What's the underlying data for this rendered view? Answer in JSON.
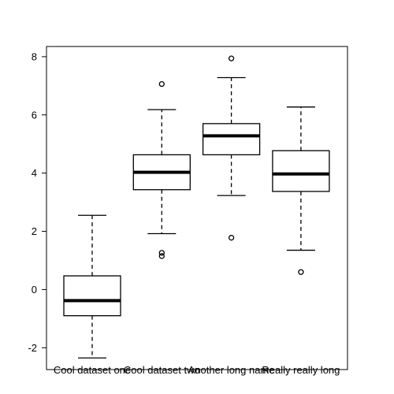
{
  "chart_data": {
    "type": "box",
    "title": "",
    "xlabel": "",
    "ylabel": "",
    "ylim": [
      -2.75,
      8.35
    ],
    "yticks": [
      -2,
      0,
      2,
      4,
      6,
      8
    ],
    "grid": false,
    "categories": [
      "Cool dataset one",
      "Cool dataset two",
      "Another long name",
      "Really really long"
    ],
    "boxes": [
      {
        "whisker_low": -2.35,
        "q1": -0.9,
        "median": -0.38,
        "q3": 0.47,
        "whisker_high": 2.55,
        "outliers": []
      },
      {
        "whisker_low": 1.92,
        "q1": 3.43,
        "median": 4.03,
        "q3": 4.63,
        "whisker_high": 6.18,
        "outliers": [
          1.15,
          1.26,
          7.06
        ]
      },
      {
        "whisker_low": 3.23,
        "q1": 4.63,
        "median": 5.28,
        "q3": 5.7,
        "whisker_high": 7.28,
        "outliers": [
          1.78,
          7.94
        ]
      },
      {
        "whisker_low": 1.35,
        "q1": 3.37,
        "median": 3.97,
        "q3": 4.77,
        "whisker_high": 6.27,
        "outliers": [
          0.6
        ]
      }
    ]
  }
}
